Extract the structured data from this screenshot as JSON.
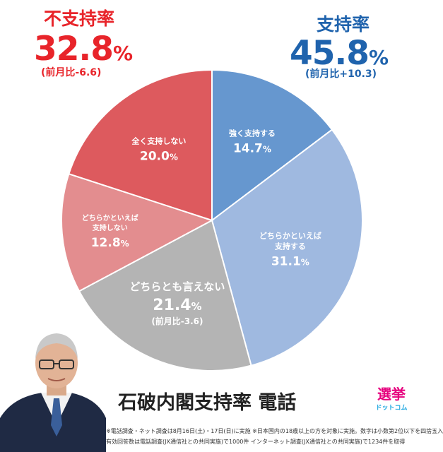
{
  "header": {
    "disapprove": {
      "title": "不支持率",
      "value": "32.8",
      "unit": "%",
      "change": "(前月比-6.6)"
    },
    "approve": {
      "title": "支持率",
      "value": "45.8",
      "unit": "%",
      "change": "(前月比+10.3)"
    }
  },
  "colors": {
    "approve": "#1f63ad",
    "disapprove": "#e8242a",
    "strong_support": "#6697cf",
    "somewhat_support": "#9fb9e0",
    "neither": "#b4b4b4",
    "somewhat_not": "#e38d8f",
    "not_at_all": "#dd5a5e"
  },
  "chart_data": {
    "type": "pie",
    "title": "石破内閣支持率 電話",
    "start": "12 o'clock, clockwise",
    "slices": [
      {
        "label_lines": [
          "強く支持する"
        ],
        "value": 14.7,
        "value_text": "14.7",
        "unit": "%",
        "color": "#6697cf"
      },
      {
        "label_lines": [
          "どちらかといえば",
          "支持する"
        ],
        "value": 31.1,
        "value_text": "31.1",
        "unit": "%",
        "color": "#9fb9e0"
      },
      {
        "label_lines": [
          "どちらとも言えない"
        ],
        "value": 21.4,
        "value_text": "21.4",
        "unit": "%",
        "note": "(前月比-3.6)",
        "color": "#b4b4b4"
      },
      {
        "label_lines": [
          "どちらかといえば",
          "支持しない"
        ],
        "value": 12.8,
        "value_text": "12.8",
        "unit": "%",
        "color": "#e38d8f"
      },
      {
        "label_lines": [
          "全く支持しない"
        ],
        "value": 20.0,
        "value_text": "20.0",
        "unit": "%",
        "color": "#dd5a5e"
      }
    ]
  },
  "footnotes": [
    "※電話調査・ネット調査は8月16日(土)・17日(日)に実施 ※日本国内の18歳以上の方を対象に実施。数字は小数第2位以下を四捨五入",
    "有効回答数は電話調査(JX通信社との共同実施)で1000件 インターネット調査(JX通信社との共同実施)で1234件を取得"
  ],
  "logo": {
    "main": "選挙",
    "sub": "ドットコム"
  },
  "portrait": {
    "icon": "politician-portrait"
  }
}
